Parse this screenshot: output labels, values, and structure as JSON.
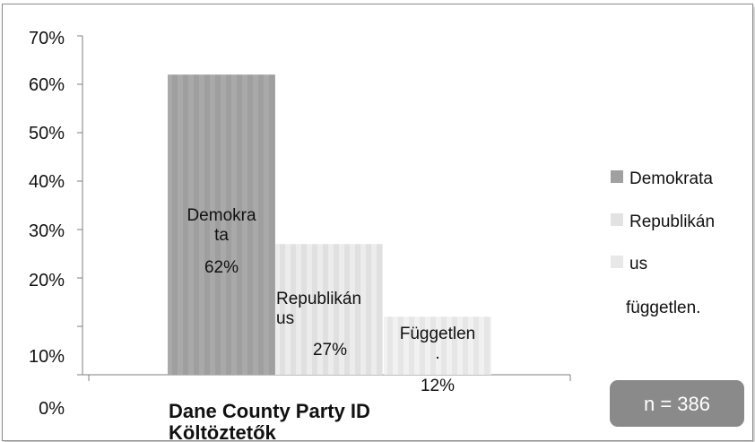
{
  "chart_data": {
    "type": "bar",
    "categories": [
      "Demokrata",
      "Republikánus",
      "Független."
    ],
    "values": [
      62,
      27,
      12
    ],
    "value_labels": [
      "62%",
      "27%",
      "12%"
    ],
    "yticks": [
      "0%",
      "10%",
      "20%",
      "30%",
      "40%",
      "50%",
      "60%",
      "70%"
    ],
    "ylim": [
      0,
      70
    ],
    "title": "",
    "xlabel": "Dane County Party ID Költöztetők",
    "ylabel": "",
    "legend": {
      "position": "right",
      "entries": [
        "Demokrata",
        "Republikán",
        "us",
        "független."
      ]
    },
    "colors": [
      "#a6a6a6",
      "#e6e6e6",
      "#eeeeee"
    ],
    "grid": false
  },
  "annotation": {
    "sample_size": "n = 386"
  }
}
